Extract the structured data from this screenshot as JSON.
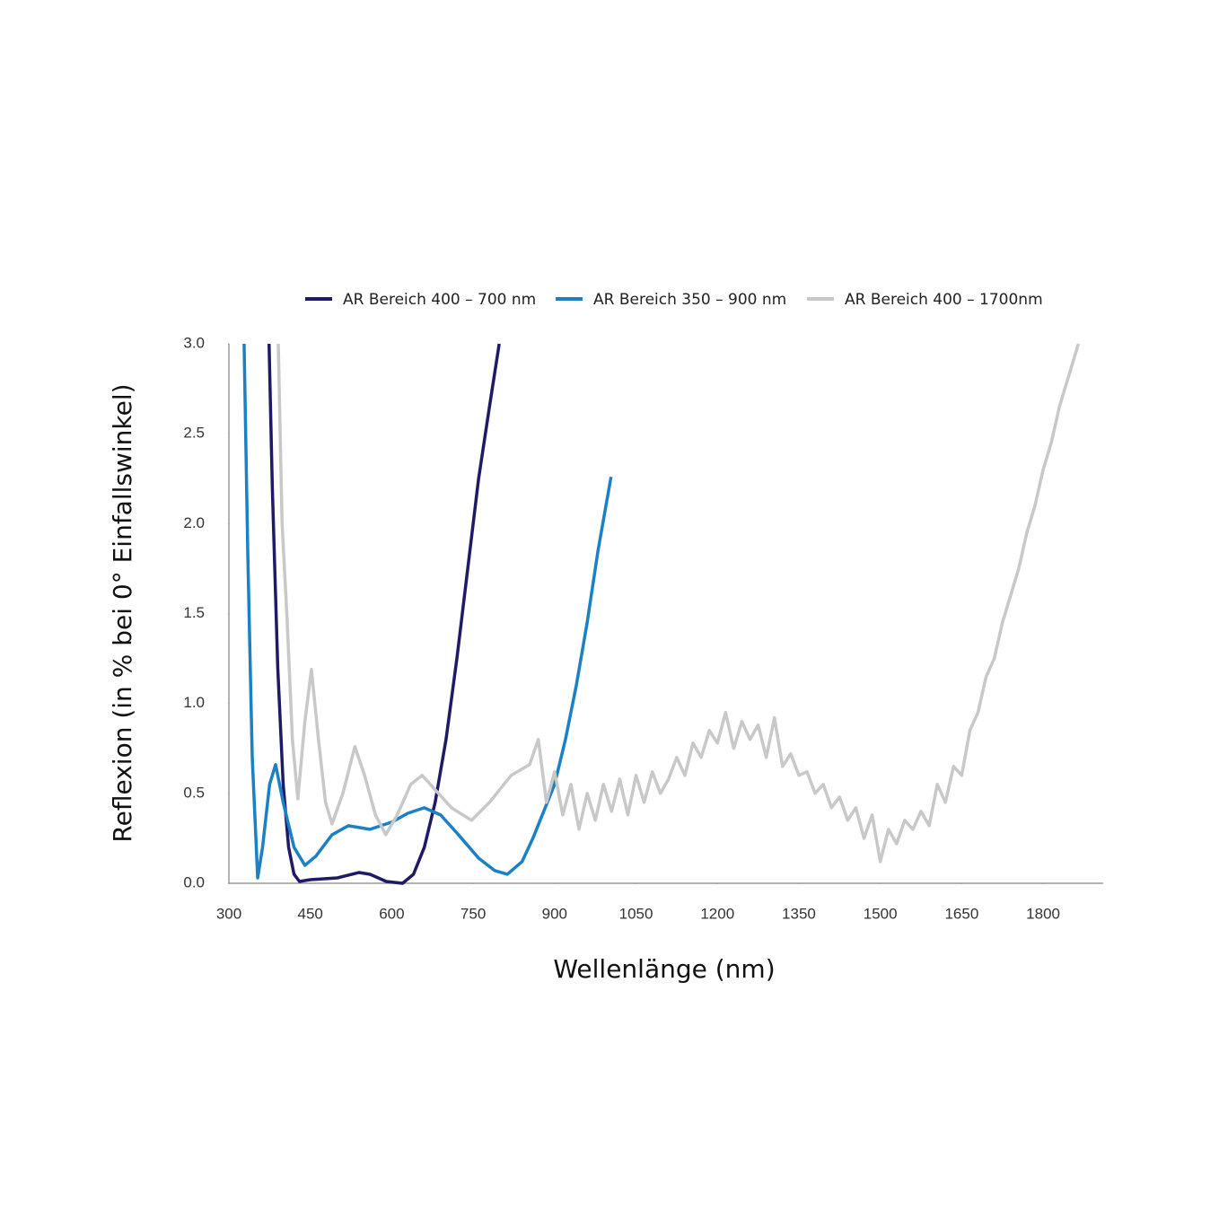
{
  "chart_data": {
    "type": "line",
    "x_label": "Wellenlänge (nm)",
    "y_label": "Reflexion (in % bei 0° Einfallswinkel)",
    "xlim": [
      300,
      1910
    ],
    "ylim": [
      0,
      3
    ],
    "xticks": [
      300,
      450,
      600,
      750,
      900,
      1050,
      1200,
      1350,
      1500,
      1650,
      1800
    ],
    "yticks": [
      {
        "value": 0,
        "label": "0.0"
      },
      0.5,
      {
        "value": 1,
        "label": "1.0"
      },
      1.5,
      {
        "value": 2,
        "label": "2.0"
      },
      2.5,
      {
        "value": 3,
        "label": "3.0"
      }
    ],
    "series": [
      {
        "name": "AR Bereich 400 – 700 nm",
        "color": "#1f1a66",
        "x": [
          374,
          380,
          390,
          400,
          410,
          420,
          430,
          450,
          500,
          540,
          560,
          590,
          620,
          640,
          660,
          680,
          700,
          720,
          740,
          760,
          780,
          798
        ],
        "values": [
          3.0,
          2.2,
          1.2,
          0.55,
          0.2,
          0.05,
          0.01,
          0.02,
          0.03,
          0.06,
          0.05,
          0.01,
          0.0,
          0.05,
          0.2,
          0.45,
          0.8,
          1.25,
          1.75,
          2.25,
          2.65,
          3.0
        ]
      },
      {
        "name": "AR Bereich 350 – 900 nm",
        "color": "#1b80c4",
        "x": [
          328,
          335,
          343,
          353,
          362,
          375,
          386,
          400,
          420,
          440,
          460,
          490,
          520,
          560,
          600,
          630,
          660,
          690,
          720,
          760,
          790,
          813,
          840,
          860,
          880,
          900,
          920,
          940,
          960,
          980,
          1004
        ],
        "values": [
          3.0,
          1.8,
          0.7,
          0.03,
          0.2,
          0.55,
          0.66,
          0.45,
          0.2,
          0.1,
          0.15,
          0.27,
          0.32,
          0.3,
          0.34,
          0.39,
          0.42,
          0.38,
          0.28,
          0.14,
          0.07,
          0.05,
          0.12,
          0.25,
          0.4,
          0.55,
          0.8,
          1.1,
          1.45,
          1.85,
          2.26
        ]
      },
      {
        "name": "AR Bereich 400 – 1700nm",
        "color": "#c8c8c8",
        "x": [
          391,
          398,
          407,
          417,
          427,
          440,
          452,
          465,
          478,
          490,
          510,
          532,
          550,
          570,
          589,
          610,
          635,
          656,
          680,
          710,
          747,
          780,
          820,
          854,
          870,
          885,
          900,
          915,
          930,
          945,
          960,
          975,
          990,
          1005,
          1020,
          1035,
          1050,
          1065,
          1080,
          1095,
          1110,
          1125,
          1140,
          1155,
          1170,
          1185,
          1200,
          1215,
          1230,
          1245,
          1260,
          1275,
          1290,
          1305,
          1320,
          1335,
          1350,
          1365,
          1380,
          1395,
          1410,
          1425,
          1440,
          1455,
          1470,
          1485,
          1500,
          1515,
          1530,
          1545,
          1560,
          1575,
          1590,
          1605,
          1620,
          1635,
          1650,
          1665,
          1680,
          1695,
          1710,
          1725,
          1740,
          1755,
          1770,
          1785,
          1800,
          1815,
          1830,
          1845,
          1865
        ],
        "values": [
          3.0,
          2.0,
          1.48,
          0.8,
          0.47,
          0.9,
          1.19,
          0.8,
          0.45,
          0.33,
          0.5,
          0.76,
          0.6,
          0.38,
          0.27,
          0.38,
          0.55,
          0.6,
          0.52,
          0.42,
          0.35,
          0.45,
          0.6,
          0.66,
          0.8,
          0.45,
          0.62,
          0.38,
          0.55,
          0.3,
          0.5,
          0.35,
          0.55,
          0.4,
          0.58,
          0.38,
          0.6,
          0.45,
          0.62,
          0.5,
          0.58,
          0.7,
          0.6,
          0.78,
          0.7,
          0.85,
          0.78,
          0.95,
          0.75,
          0.9,
          0.8,
          0.88,
          0.7,
          0.92,
          0.65,
          0.72,
          0.6,
          0.62,
          0.5,
          0.55,
          0.42,
          0.48,
          0.35,
          0.42,
          0.25,
          0.38,
          0.12,
          0.3,
          0.22,
          0.35,
          0.3,
          0.4,
          0.32,
          0.55,
          0.45,
          0.65,
          0.6,
          0.85,
          0.95,
          1.15,
          1.25,
          1.45,
          1.6,
          1.75,
          1.95,
          2.1,
          2.3,
          2.45,
          2.65,
          2.8,
          3.0
        ]
      }
    ]
  }
}
